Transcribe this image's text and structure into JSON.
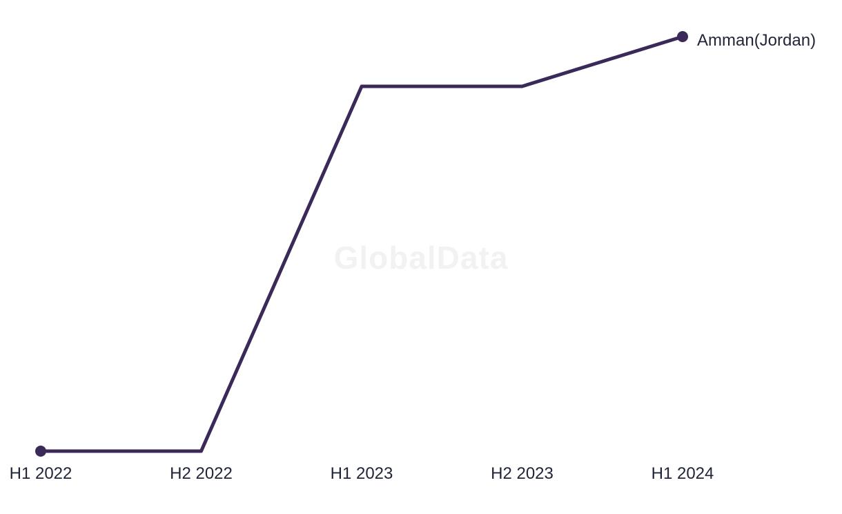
{
  "chart_data": {
    "type": "line",
    "title": "",
    "xlabel": "",
    "ylabel": "",
    "categories": [
      "H1 2022",
      "H2 2022",
      "H1 2023",
      "H2 2023",
      "H1 2024"
    ],
    "series": [
      {
        "name": "Amman(Jordan)",
        "values": [
          0,
          0,
          0.88,
          0.88,
          1
        ],
        "color": "#3b2a59",
        "markers": "first-and-last-points-only"
      }
    ],
    "ylim": [
      0,
      1
    ],
    "y_axis_visible": false,
    "grid": false,
    "legend_position": "end-of-line-label"
  },
  "watermark": {
    "text": "GlobalData",
    "color": "#f2f2f2"
  },
  "colors": {
    "line": "#3b2a59",
    "marker": "#3b2a59",
    "axis_label": "#1f2438",
    "background": "#ffffff"
  }
}
